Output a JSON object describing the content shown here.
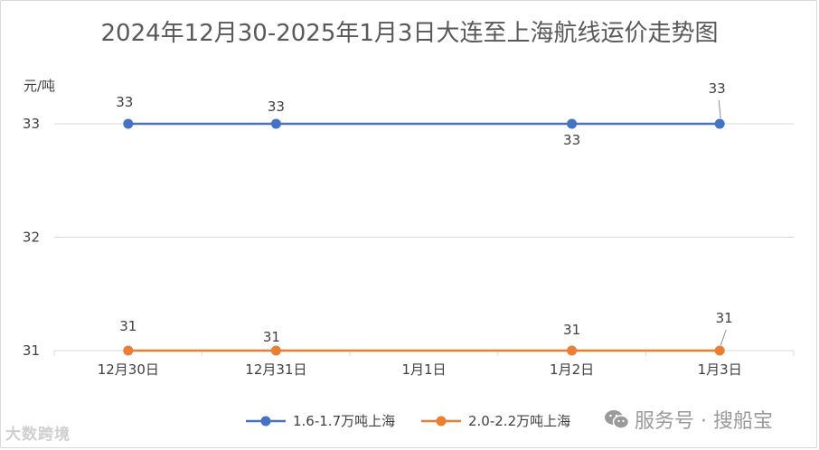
{
  "chart_data": {
    "type": "line",
    "title": "2024年12月30-2025年1月3日大连至上海航线运价走势图",
    "ylabel": "元/吨",
    "categories": [
      "12月30日",
      "12月31日",
      "1月1日",
      "1月2日",
      "1月3日"
    ],
    "ylim": [
      31,
      33
    ],
    "yticks": [
      31,
      32,
      33
    ],
    "series": [
      {
        "name": "1.6-1.7万吨上海",
        "color": "#4472c4",
        "values": [
          33,
          33,
          null,
          33,
          33
        ]
      },
      {
        "name": "2.0-2.2万吨上海",
        "color": "#ed7d31",
        "values": [
          31,
          31,
          null,
          31,
          31
        ]
      }
    ],
    "grid": true,
    "legend": "bottom"
  },
  "watermark": {
    "left": "大数跨境",
    "right": "服务号 · 搜船宝",
    "right_icon": "wechat-icon"
  }
}
